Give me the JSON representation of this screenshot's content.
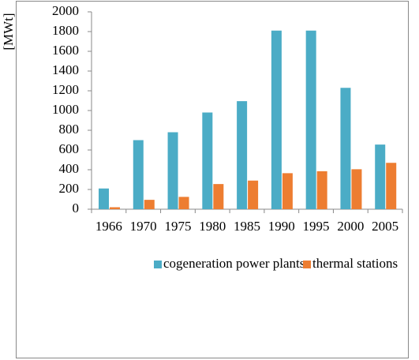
{
  "chart_data": {
    "type": "bar",
    "y_label": "[MWt]",
    "categories": [
      "1966",
      "1970",
      "1975",
      "1980",
      "1985",
      "1990",
      "1995",
      "2000",
      "2005"
    ],
    "series": [
      {
        "name": "cogeneration power plants",
        "color": "#4bacc6",
        "values": [
          210,
          700,
          780,
          980,
          1095,
          1810,
          1810,
          1230,
          655
        ]
      },
      {
        "name": "thermal stations",
        "color": "#ed7d31",
        "values": [
          20,
          95,
          125,
          255,
          290,
          365,
          385,
          405,
          470
        ]
      }
    ],
    "ylim": [
      0,
      2000
    ],
    "yticks": [
      0,
      200,
      400,
      600,
      800,
      1000,
      1200,
      1400,
      1600,
      1800,
      2000
    ],
    "grid": false,
    "legend": "bottom"
  }
}
